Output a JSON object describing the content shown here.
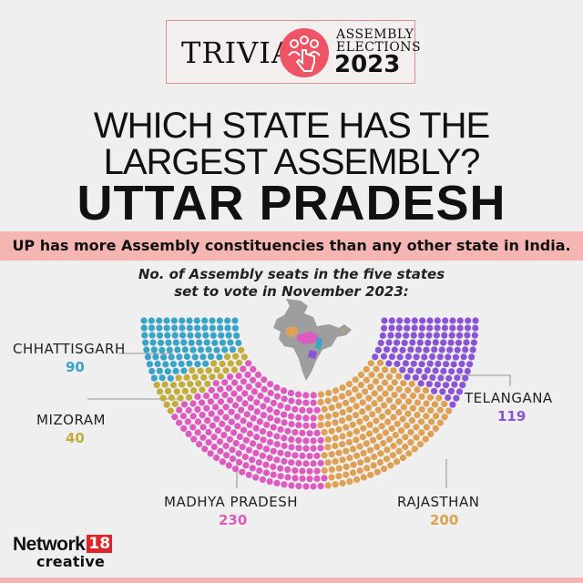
{
  "header": {
    "trivia": "TRIVIA",
    "assembly": "ASSEMBLY",
    "elections": "ELECTIONS",
    "year": "2023",
    "logo_icon": "hand-pointer-people-icon"
  },
  "question_line1": "WHICH STATE HAS THE",
  "question_line2": "LARGEST ASSEMBLY?",
  "answer": "UTTAR PRADESH",
  "strip_text": "UP has more Assembly constituencies than any other state in India.",
  "subtitle_line1": "No. of Assembly seats in the five states",
  "subtitle_line2": "set to vote in November 2023:",
  "brand": {
    "name": "Network",
    "number": "18",
    "sub": "creative"
  },
  "colors": {
    "background": "#efefef",
    "accent_pink": "#f5b6b3",
    "chhattisgarh": "#3aa3c8",
    "mizoram": "#c2ad3c",
    "madhya_pradesh": "#dd5bbf",
    "rajasthan": "#dea052",
    "telangana": "#8a55d4"
  },
  "chart_data": {
    "type": "parliament",
    "title": "No. of Assembly seats in the five states set to vote in November 2023:",
    "categories": [
      "CHHATTISGARH",
      "MIZORAM",
      "MADHYA PRADESH",
      "RAJASTHAN",
      "TELANGANA"
    ],
    "values": [
      90,
      40,
      230,
      200,
      119
    ],
    "colors": [
      "#3aa3c8",
      "#c2ad3c",
      "#dd5bbf",
      "#dea052",
      "#8a55d4"
    ],
    "total": 679
  }
}
